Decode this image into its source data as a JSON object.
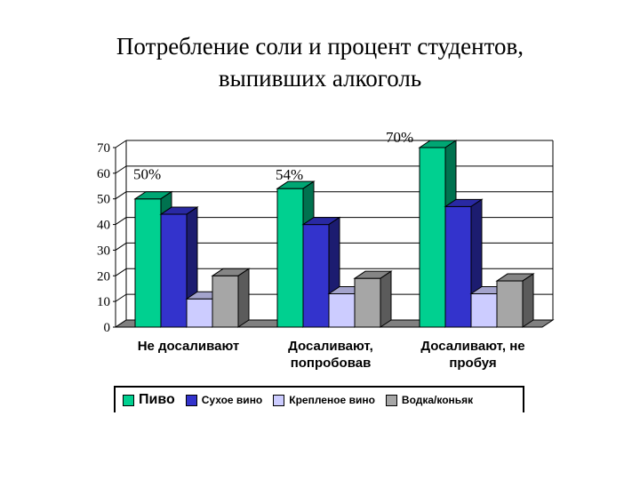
{
  "title_line1": "Потребление соли и процент студентов,",
  "title_line2": "выпивших алкоголь",
  "colors": {
    "beer": "#00d090",
    "dry_wine": "#3333cc",
    "fortified_wine": "#ccccff",
    "vodka": "#a6a6a6"
  },
  "chart_data": {
    "type": "bar",
    "title": "Потребление соли и процент студентов, выпивших алкоголь",
    "categories": [
      "Не досаливают",
      "Досаливают, попробовав",
      "Досаливают, не пробуя"
    ],
    "category_lines": [
      [
        "Не досаливают"
      ],
      [
        "Досаливают,",
        "попробовав"
      ],
      [
        "Досаливают, не",
        "пробуя"
      ]
    ],
    "series": [
      {
        "name": "Пиво",
        "values": [
          50,
          54,
          70
        ],
        "color": "#00d090"
      },
      {
        "name": "Сухое вино",
        "values": [
          44,
          40,
          47
        ],
        "color": "#3333cc"
      },
      {
        "name": "Крепленое вино",
        "values": [
          11,
          13,
          13
        ],
        "color": "#ccccff"
      },
      {
        "name": "Водка/коньяк",
        "values": [
          20,
          19,
          18
        ],
        "color": "#a6a6a6"
      }
    ],
    "data_labels": [
      "50%",
      "54%",
      "70%"
    ],
    "y_ticks": [
      0,
      10,
      20,
      30,
      40,
      50,
      60,
      70
    ],
    "ylim": [
      0,
      70
    ],
    "grid": true,
    "three_d": true,
    "legend_position": "bottom"
  }
}
